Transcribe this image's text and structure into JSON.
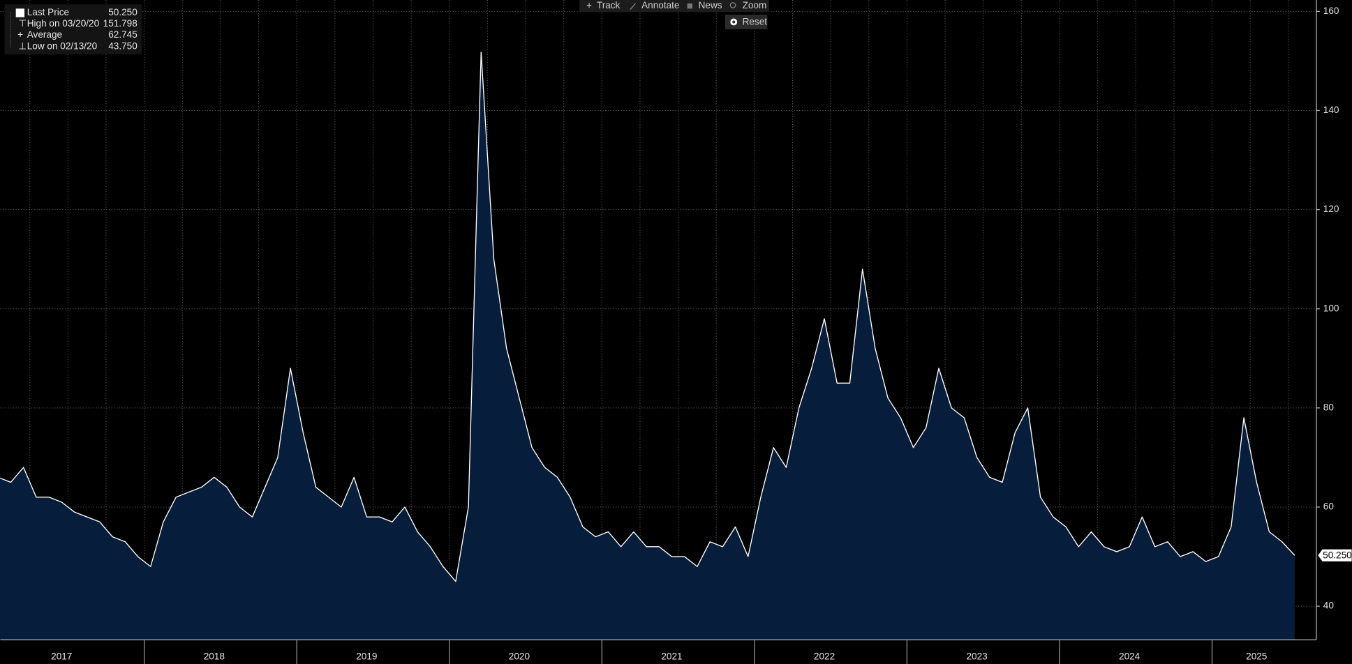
{
  "toolbar": [
    "Track",
    "Annotate",
    "News",
    "Zoom"
  ],
  "reset": "Reset",
  "legend": [
    {
      "label": "Last Price",
      "value": "50.250"
    },
    {
      "label": "High on 03/20/20",
      "value": "151.798"
    },
    {
      "label": "Average",
      "value": "62.745"
    },
    {
      "label": "Low on 02/13/20",
      "value": "43.750"
    }
  ],
  "chart_data": {
    "type": "area",
    "categories": [
      null,
      null,
      null,
      null,
      null,
      "2017",
      null,
      null,
      null,
      null,
      null,
      null,
      null,
      null,
      null,
      null,
      null,
      "2018",
      null,
      null,
      null,
      null,
      null,
      null,
      null,
      null,
      null,
      null,
      null,
      "2019",
      null,
      null,
      null,
      null,
      null,
      null,
      null,
      null,
      null,
      null,
      null,
      "2020",
      null,
      null,
      null,
      null,
      null,
      null,
      null,
      null,
      null,
      null,
      null,
      "2021",
      null,
      null,
      null,
      null,
      null,
      null,
      null,
      null,
      null,
      null,
      null,
      "2022",
      null,
      null,
      null,
      null,
      null,
      null,
      null,
      null,
      null,
      null,
      null,
      "2023",
      null,
      null,
      null,
      null,
      null,
      null,
      null,
      null,
      null,
      null,
      null,
      "2024",
      null,
      null,
      null,
      null,
      null,
      null,
      null,
      null,
      null,
      "2025",
      null,
      null,
      null
    ],
    "series": [
      {
        "name": "Last Price",
        "color": "#ffffff",
        "fill": "#061d3b",
        "values": [
          66,
          65,
          68,
          62,
          62,
          61,
          59,
          58,
          57,
          54,
          53,
          50,
          48,
          57,
          62,
          63,
          64,
          66,
          64,
          60,
          58,
          64,
          70,
          88,
          75,
          64,
          62,
          60,
          66,
          58,
          58,
          57,
          60,
          55,
          52,
          48,
          45,
          60,
          151.798,
          110,
          92,
          82,
          72,
          68,
          66,
          62,
          56,
          54,
          55,
          52,
          55,
          52,
          52,
          50,
          50,
          48,
          53,
          52,
          56,
          50,
          62,
          72,
          68,
          80,
          88,
          98,
          85,
          85,
          108,
          92,
          82,
          78,
          72,
          76,
          88,
          80,
          78,
          70,
          66,
          65,
          75,
          80,
          62,
          58,
          56,
          52,
          55,
          52,
          51,
          52,
          58,
          52,
          53,
          50,
          51,
          49,
          50,
          56,
          78,
          65,
          55,
          53,
          50.25
        ]
      }
    ],
    "ylim": [
      33.2,
      162.3
    ],
    "yticks": [
      40,
      60,
      80,
      100,
      120,
      140,
      160
    ],
    "grid": true
  }
}
